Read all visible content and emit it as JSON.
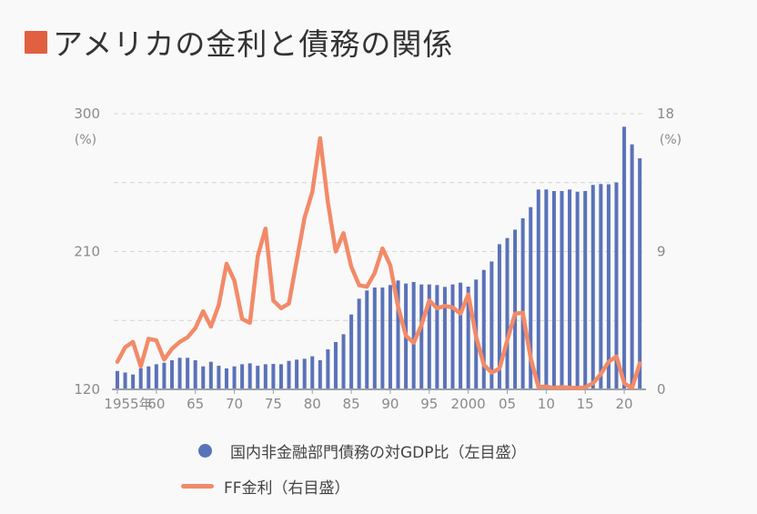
{
  "title": "アメリカの金利と債務の関係",
  "colors": {
    "title_marker": "#e06040",
    "bars": "#5a72b8",
    "line": "#f28a68",
    "grid": "#d6d6d6",
    "axis": "#9aa0aa"
  },
  "chart_data": {
    "type": "bar+line",
    "title": "アメリカの金利と債務の関係",
    "x": [
      1955,
      1956,
      1957,
      1958,
      1959,
      1960,
      1961,
      1962,
      1963,
      1964,
      1965,
      1966,
      1967,
      1968,
      1969,
      1970,
      1971,
      1972,
      1973,
      1974,
      1975,
      1976,
      1977,
      1978,
      1979,
      1980,
      1981,
      1982,
      1983,
      1984,
      1985,
      1986,
      1987,
      1988,
      1989,
      1990,
      1991,
      1992,
      1993,
      1994,
      1995,
      1996,
      1997,
      1998,
      1999,
      2000,
      2001,
      2002,
      2003,
      2004,
      2005,
      2006,
      2007,
      2008,
      2009,
      2010,
      2011,
      2012,
      2013,
      2014,
      2015,
      2016,
      2017,
      2018,
      2019,
      2020,
      2021,
      2022
    ],
    "x_ticks": [
      {
        "value": 1955,
        "label": "1955年"
      },
      {
        "value": 1960,
        "label": "60"
      },
      {
        "value": 1965,
        "label": "65"
      },
      {
        "value": 1970,
        "label": "70"
      },
      {
        "value": 1975,
        "label": "75"
      },
      {
        "value": 1980,
        "label": "80"
      },
      {
        "value": 1985,
        "label": "85"
      },
      {
        "value": 1990,
        "label": "90"
      },
      {
        "value": 1995,
        "label": "95"
      },
      {
        "value": 2000,
        "label": "2000"
      },
      {
        "value": 2005,
        "label": "05"
      },
      {
        "value": 2010,
        "label": "10"
      },
      {
        "value": 2015,
        "label": "15"
      },
      {
        "value": 2020,
        "label": "20"
      }
    ],
    "left_axis": {
      "unit": "(%)",
      "ylim": [
        120,
        300
      ],
      "ticks": [
        {
          "value": 300,
          "label": "300"
        },
        {
          "value": 210,
          "label": "210"
        },
        {
          "value": 120,
          "label": "120"
        }
      ],
      "gridlines": [
        300,
        255,
        210,
        165
      ]
    },
    "right_axis": {
      "unit": "(%)",
      "ylim": [
        0,
        18
      ],
      "ticks": [
        {
          "value": 18,
          "label": "18"
        },
        {
          "value": 9,
          "label": "9"
        },
        {
          "value": 0,
          "label": "0"
        }
      ]
    },
    "grid": true,
    "legend_position": "bottom",
    "series": [
      {
        "name": "国内非金融部門債務の対GDP比（左目盛）",
        "type": "bar",
        "axis": "left",
        "values": [
          132,
          131,
          129.7,
          133.7,
          135,
          136.4,
          137.4,
          139,
          140.6,
          140.6,
          139,
          135,
          138,
          135.4,
          133.7,
          135,
          136.4,
          137,
          135.4,
          136.4,
          136.6,
          136.4,
          138.6,
          139.4,
          140,
          141.6,
          139,
          146.1,
          150.9,
          156,
          168.9,
          179.2,
          184.6,
          186.5,
          186.5,
          188.1,
          191.1,
          189.1,
          190.1,
          188.5,
          188.5,
          188.1,
          186.9,
          188.5,
          189.7,
          187.1,
          191.7,
          198,
          203.5,
          214.8,
          218.8,
          224.3,
          231.7,
          239,
          250.5,
          250.5,
          249.5,
          249.5,
          250.5,
          249.1,
          249.5,
          253.5,
          254.1,
          253.9,
          255.1,
          291.5,
          280,
          270.9
        ]
      },
      {
        "name": "FF金利（右目盛）",
        "type": "line",
        "axis": "right",
        "values": [
          1.8,
          2.75,
          3.1,
          1.5,
          3.3,
          3.2,
          1.95,
          2.65,
          3.1,
          3.4,
          4.0,
          5.1,
          4.1,
          5.5,
          8.2,
          7.1,
          4.6,
          4.35,
          8.7,
          10.5,
          5.8,
          5.3,
          5.6,
          8.4,
          11.2,
          12.9,
          16.4,
          12.2,
          9.0,
          10.2,
          8.0,
          6.8,
          6.7,
          7.6,
          9.2,
          8.1,
          5.4,
          3.5,
          3.05,
          4.2,
          5.8,
          5.3,
          5.45,
          5.35,
          4.95,
          6.2,
          3.45,
          1.6,
          1.1,
          1.35,
          3.2,
          4.95,
          5.0,
          2.05,
          0.16,
          0.18,
          0.1,
          0.14,
          0.11,
          0.09,
          0.13,
          0.4,
          1.0,
          1.8,
          2.15,
          0.4,
          0.08,
          1.7
        ]
      }
    ]
  },
  "legend": {
    "items": [
      {
        "label": "国内非金融部門債務の対GDP比（左目盛）",
        "marker": "circle"
      },
      {
        "label": "FF金利（右目盛）",
        "marker": "line"
      }
    ]
  }
}
